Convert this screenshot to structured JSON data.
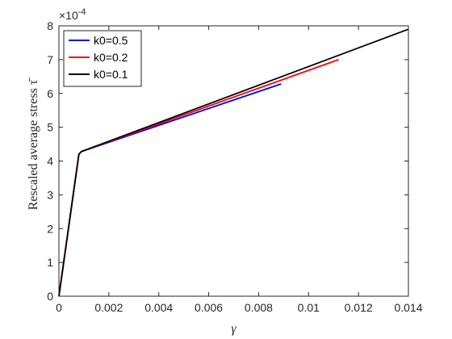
{
  "chart_data": {
    "type": "line",
    "xlabel": "γ",
    "ylabel": "Rescaled average stress τ̄",
    "x_ticks": [
      "0",
      "0.002",
      "0.004",
      "0.006",
      "0.008",
      "0.01",
      "0.012",
      "0.014"
    ],
    "y_ticks": [
      "0",
      "1",
      "2",
      "3",
      "4",
      "5",
      "6",
      "7",
      "8"
    ],
    "y_exponent_base": "×10",
    "y_exponent_power": "-4",
    "xlim": [
      0,
      0.014
    ],
    "ylim": [
      0,
      8
    ],
    "y_scale_note": "values in units of 1e-4",
    "grid": false,
    "legend_position": "top-left",
    "series": [
      {
        "name": "k0=0.5",
        "color": "#0000ff",
        "x": [
          0,
          0.0008,
          0.0009,
          0.0089
        ],
        "y": [
          0,
          4.2,
          4.28,
          6.28
        ]
      },
      {
        "name": "k0=0.2",
        "color": "#ff0000",
        "x": [
          0,
          0.0008,
          0.0009,
          0.0112
        ],
        "y": [
          0,
          4.2,
          4.28,
          7.0
        ]
      },
      {
        "name": "k0=0.1",
        "color": "#000000",
        "x": [
          0,
          0.0008,
          0.0009,
          0.014
        ],
        "y": [
          0,
          4.2,
          4.28,
          7.9
        ]
      }
    ]
  }
}
